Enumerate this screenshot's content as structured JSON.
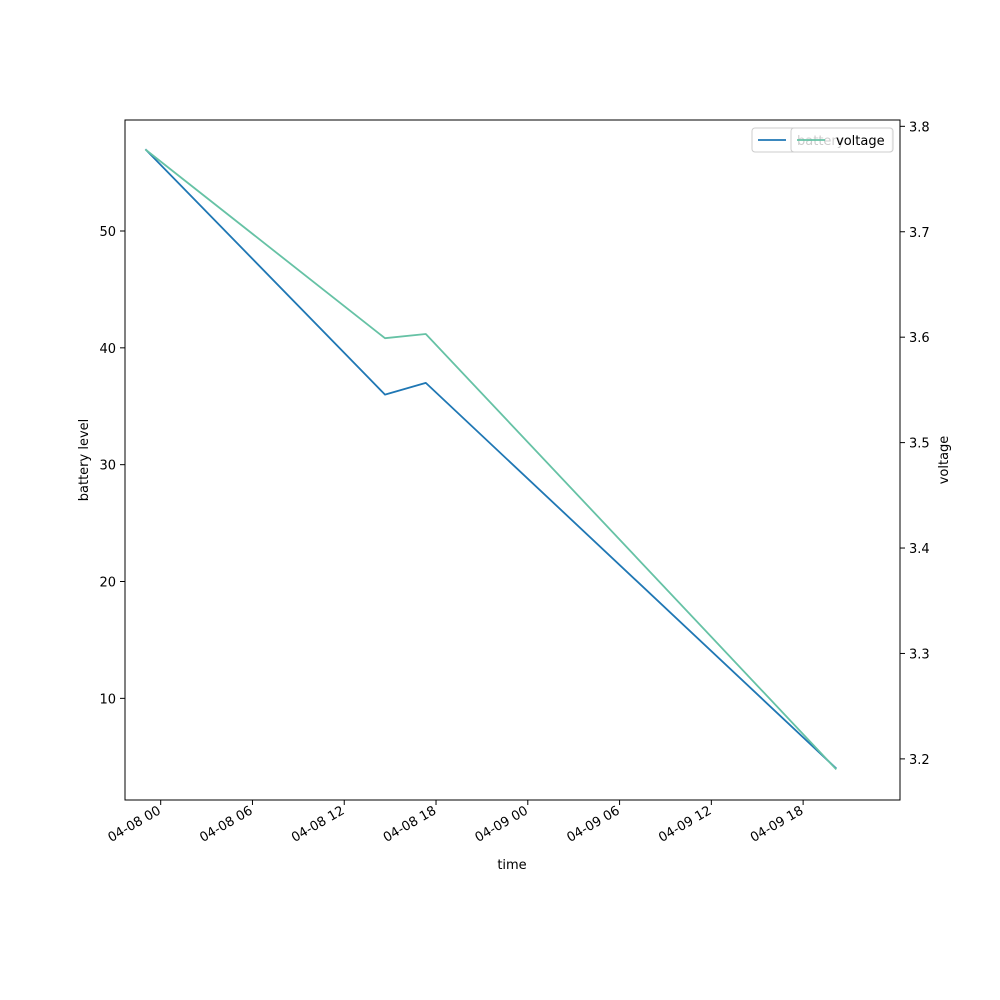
{
  "chart_data": {
    "type": "line",
    "xlabel": "time",
    "ylabel_left": "battery level",
    "ylabel_right": "voltage",
    "x_ticks": [
      "04-08 00",
      "04-08 06",
      "04-08 12",
      "04-08 18",
      "04-09 00",
      "04-09 06",
      "04-09 12",
      "04-09 18"
    ],
    "xlim": [
      "2024-04-07 21:40",
      "2024-04-10 00:20"
    ],
    "y_left_ticks": [
      10,
      20,
      30,
      40,
      50
    ],
    "y_left_lim": [
      1.3,
      59.5
    ],
    "y_right_ticks": [
      3.2,
      3.3,
      3.4,
      3.5,
      3.6,
      3.7,
      3.8
    ],
    "y_right_lim": [
      3.161,
      3.806
    ],
    "series": [
      {
        "name": "battery",
        "axis": "left",
        "color": "#1f77b4",
        "points": [
          {
            "x": "2024-04-07 23:00",
            "y": 57
          },
          {
            "x": "2024-04-08 14:40",
            "y": 36
          },
          {
            "x": "2024-04-08 17:20",
            "y": 37
          },
          {
            "x": "2024-04-09 20:10",
            "y": 4
          }
        ]
      },
      {
        "name": "voltage",
        "axis": "right",
        "color": "#66c2a5",
        "points": [
          {
            "x": "2024-04-07 23:00",
            "y": 3.778
          },
          {
            "x": "2024-04-08 14:40",
            "y": 3.599
          },
          {
            "x": "2024-04-08 17:20",
            "y": 3.603
          },
          {
            "x": "2024-04-09 20:10",
            "y": 3.19
          }
        ]
      }
    ],
    "legends": [
      {
        "position": "top-right",
        "entries": [
          "battery"
        ]
      },
      {
        "position": "top-right",
        "entries": [
          "voltage"
        ]
      }
    ],
    "grid": false
  }
}
